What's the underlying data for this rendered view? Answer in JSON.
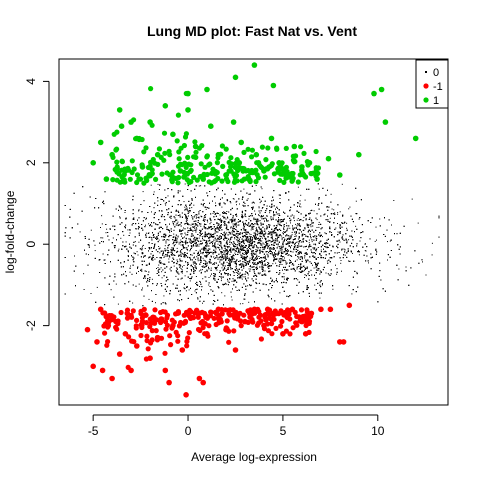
{
  "chart_data": {
    "type": "scatter",
    "title": "Lung MD plot: Fast Nat vs. Vent",
    "xlabel": "Average log-expression",
    "ylabel": "log-fold-change",
    "xlim": [
      -6.8,
      13.7
    ],
    "ylim": [
      -3.95,
      4.55
    ],
    "x_ticks": [
      -5,
      0,
      5,
      10
    ],
    "y_ticks": [
      -2,
      0,
      2,
      4
    ],
    "x_tick_labels": [
      "-5",
      "0",
      "5",
      "10"
    ],
    "y_tick_labels": [
      "-2",
      "0",
      "2",
      "4"
    ],
    "grid": false,
    "legend_position": "top-right",
    "series": [
      {
        "name": "0",
        "color": "#000000",
        "marker": "dot",
        "description_of_cloud": "dense non-significant cloud",
        "x_range": [
          -6.5,
          13.2
        ],
        "y_range": [
          -1.5,
          1.5
        ],
        "center": [
          2.5,
          0.0
        ]
      },
      {
        "name": "-1",
        "color": "#ff0000",
        "marker": "filled-circle",
        "x": [
          -5.3,
          -5.0,
          -4.8,
          -4.5,
          -4.2,
          -4.0,
          -3.6,
          -3.3,
          -3.0,
          -2.7,
          -2.4,
          -2.0,
          -1.6,
          -1.2,
          -0.8,
          -0.3,
          0.2,
          0.6,
          1.0,
          1.5,
          2.0,
          2.5,
          3.0,
          3.5,
          4.0,
          4.5,
          5.0,
          5.5,
          6.0,
          6.5,
          7.0,
          7.5,
          8.0,
          8.5,
          -4.6,
          -3.2,
          -1.8,
          0.5,
          1.6,
          2.5,
          4.2,
          6.2,
          -0.1,
          8.2,
          -1.0,
          0.8
        ],
        "y": [
          -2.1,
          -3.0,
          -2.4,
          -3.1,
          -2.0,
          -3.3,
          -2.7,
          -2.2,
          -3.1,
          -2.5,
          -1.9,
          -2.8,
          -2.3,
          -3.1,
          -2.0,
          -2.6,
          -1.8,
          -3.3,
          -2.2,
          -1.7,
          -2.1,
          -2.6,
          -1.9,
          -1.6,
          -2.0,
          -1.7,
          -2.2,
          -1.6,
          -1.9,
          -1.7,
          -1.6,
          -1.6,
          -2.4,
          -1.5,
          -1.6,
          -1.7,
          -1.8,
          -1.7,
          -1.6,
          -1.7,
          -1.6,
          -2.2,
          -3.7,
          -2.4,
          -3.4,
          -3.4
        ]
      },
      {
        "name": "1",
        "color": "#00cc00",
        "marker": "filled-circle",
        "x": [
          -5.0,
          -4.6,
          -4.3,
          -4.0,
          -3.6,
          -3.3,
          -3.0,
          -2.7,
          -2.4,
          -2.0,
          -1.6,
          -1.2,
          -0.8,
          -0.4,
          0.0,
          0.4,
          0.8,
          1.2,
          1.6,
          2.0,
          2.4,
          2.8,
          3.2,
          3.6,
          4.0,
          4.4,
          4.8,
          5.2,
          5.6,
          6.0,
          6.4,
          6.8,
          7.4,
          8.0,
          9.0,
          9.8,
          10.2,
          10.4,
          12.0,
          3.5,
          2.5,
          1.0,
          0.0,
          -3.5,
          4.5,
          2.7
        ],
        "y": [
          2.0,
          2.5,
          1.6,
          2.2,
          3.3,
          1.8,
          3.0,
          2.6,
          1.9,
          3.0,
          2.2,
          3.4,
          2.7,
          1.8,
          3.7,
          2.4,
          1.6,
          2.9,
          2.2,
          1.7,
          3.0,
          2.5,
          1.6,
          2.2,
          1.8,
          2.6,
          2.0,
          1.7,
          2.4,
          1.9,
          2.0,
          1.6,
          2.1,
          1.7,
          2.2,
          3.7,
          3.8,
          3.0,
          2.6,
          4.4,
          4.1,
          3.8,
          3.3,
          2.9,
          3.9,
          2.0
        ]
      }
    ],
    "legend": [
      {
        "label": "0",
        "color": "#000000",
        "symbol": "dot"
      },
      {
        "label": "-1",
        "color": "#ff0000",
        "symbol": "circle"
      },
      {
        "label": "1",
        "color": "#00cc00",
        "symbol": "circle"
      }
    ]
  }
}
